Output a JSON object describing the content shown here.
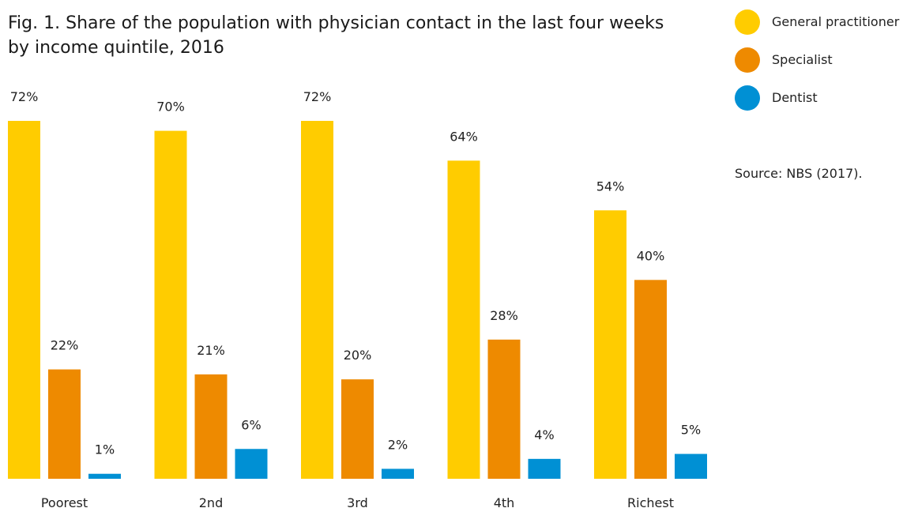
{
  "chart_data": {
    "type": "bar",
    "title": "Fig. 1. Share of the population with physician contact in the last four weeks by income quintile, 2016",
    "categories": [
      "Poorest",
      "2nd",
      "3rd",
      "4th",
      "Richest"
    ],
    "series": [
      {
        "name": "General practitioner",
        "color": "#FFCC00",
        "values": [
          72,
          70,
          72,
          64,
          54
        ],
        "labels": [
          "72%",
          "70%",
          "72%",
          "64%",
          "54%"
        ]
      },
      {
        "name": "Specialist",
        "color": "#EE8A00",
        "values": [
          22,
          21,
          20,
          28,
          40
        ],
        "labels": [
          "22%",
          "21%",
          "20%",
          "28%",
          "40%"
        ]
      },
      {
        "name": "Dentist",
        "color": "#0090D4",
        "values": [
          1,
          6,
          2,
          4,
          5
        ],
        "labels": [
          "1%",
          "6%",
          "2%",
          "4%",
          "5%"
        ]
      }
    ],
    "ylim": [
      0,
      72
    ],
    "xlabel": "",
    "ylabel": "",
    "grid": false,
    "legend_position": "top-right",
    "source": "Source: NBS (2017)."
  }
}
